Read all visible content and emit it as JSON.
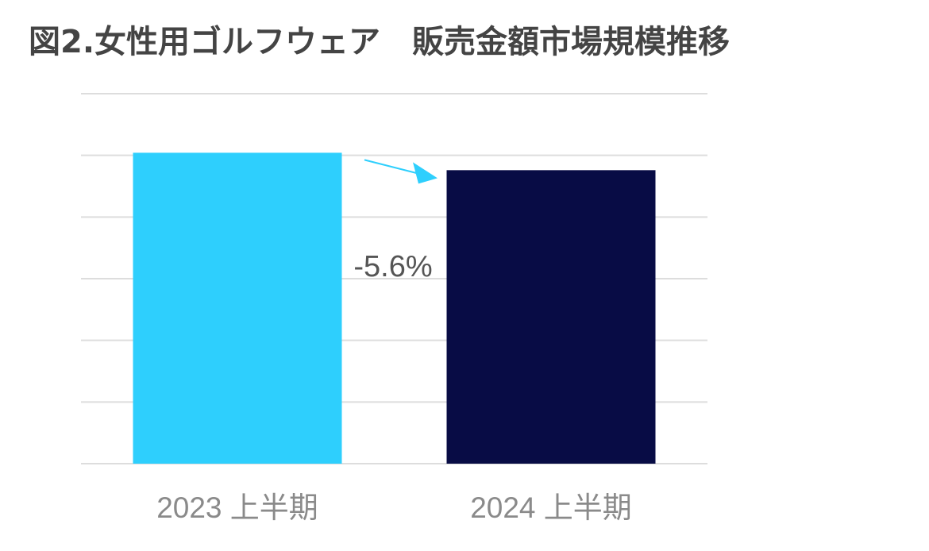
{
  "chart_data": {
    "type": "bar",
    "title": "図2.女性用ゴルフウェア　販売金額市場規模推移",
    "categories": [
      "2023 上半期",
      "2024 上半期"
    ],
    "values": [
      100,
      94.4
    ],
    "ylim": [
      0,
      119
    ],
    "grid": true,
    "annotation": {
      "text": "-5.6%",
      "arrow": "from-first-to-second"
    },
    "colors": [
      "#2ecffd",
      "#080c45"
    ],
    "gridline_color": "#dddddd",
    "arrow_color": "#2ecffd"
  }
}
